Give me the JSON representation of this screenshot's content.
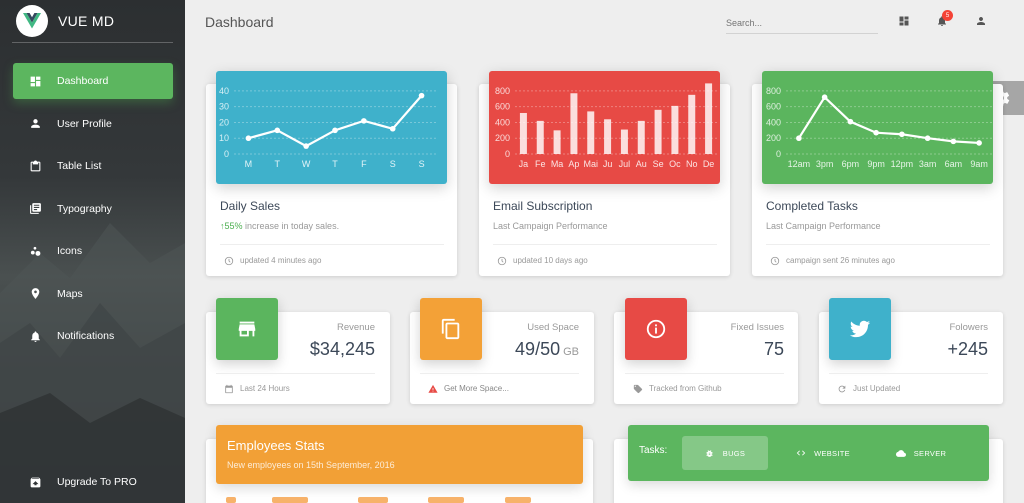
{
  "brand": {
    "name": "VUE MD"
  },
  "sidebar": {
    "items": [
      {
        "label": "Dashboard",
        "icon": "dashboard-icon",
        "active": true
      },
      {
        "label": "User Profile",
        "icon": "person-icon"
      },
      {
        "label": "Table List",
        "icon": "clipboard-icon"
      },
      {
        "label": "Typography",
        "icon": "library-books-icon"
      },
      {
        "label": "Icons",
        "icon": "bubble-chart-icon"
      },
      {
        "label": "Maps",
        "icon": "location-pin-icon"
      },
      {
        "label": "Notifications",
        "icon": "bell-icon"
      }
    ],
    "upgrade_label": "Upgrade To PRO"
  },
  "header": {
    "title": "Dashboard",
    "search_placeholder": "Search...",
    "notification_count": "5"
  },
  "charts": [
    {
      "title": "Daily Sales",
      "category_percent": "55%",
      "category_text": " increase in today sales.",
      "footer": "updated 4 minutes ago",
      "color": "#3fb1cb"
    },
    {
      "title": "Email Subscription",
      "category_text": "Last Campaign Performance",
      "footer": "updated 10 days ago",
      "color": "#e74a45"
    },
    {
      "title": "Completed Tasks",
      "category_text": "Last Campaign Performance",
      "footer": "campaign sent 26 minutes ago",
      "color": "#5bb55e"
    }
  ],
  "chart_data": [
    {
      "type": "line",
      "categories": [
        "M",
        "T",
        "W",
        "T",
        "F",
        "S",
        "S"
      ],
      "values": [
        10,
        15,
        5,
        15,
        21,
        16,
        37
      ],
      "yticks": [
        "40",
        "30",
        "20",
        "10",
        "0"
      ],
      "ylim": [
        0,
        45
      ],
      "grid": true
    },
    {
      "type": "bar",
      "categories": [
        "Ja",
        "Fe",
        "Ma",
        "Ap",
        "Mai",
        "Ju",
        "Jul",
        "Au",
        "Se",
        "Oc",
        "No",
        "De"
      ],
      "values": [
        520,
        420,
        300,
        770,
        540,
        440,
        310,
        420,
        560,
        610,
        750,
        895
      ],
      "yticks": [
        "800",
        "600",
        "400",
        "200",
        "0"
      ],
      "ylim": [
        0,
        900
      ],
      "grid": true
    },
    {
      "type": "line",
      "categories": [
        "12am",
        "3pm",
        "6pm",
        "9pm",
        "12pm",
        "3am",
        "6am",
        "9am"
      ],
      "values": [
        200,
        720,
        410,
        270,
        250,
        200,
        160,
        140
      ],
      "yticks": [
        "800",
        "600",
        "400",
        "200",
        "0"
      ],
      "ylim": [
        0,
        900
      ],
      "grid": true
    }
  ],
  "stats": [
    {
      "label": "Revenue",
      "value": "$34,245",
      "unit": "",
      "footer": "Last 24 Hours",
      "color": "#5bb55e",
      "icon": "store-icon",
      "footer_icon": "calendar-icon"
    },
    {
      "label": "Used Space",
      "value": "49/50",
      "unit": "GB",
      "footer": "Get More Space...",
      "color": "#f3a137",
      "icon": "copy-icon",
      "footer_icon": "warning-icon"
    },
    {
      "label": "Fixed Issues",
      "value": "75",
      "unit": "",
      "footer": "Tracked from Github",
      "color": "#e74a45",
      "icon": "info-icon",
      "footer_icon": "tag-icon"
    },
    {
      "label": "Folowers",
      "value": "+245",
      "unit": "",
      "footer": "Just Updated",
      "color": "#3fb1cb",
      "icon": "twitter-icon",
      "footer_icon": "refresh-icon"
    }
  ],
  "employees": {
    "title": "Employees Stats",
    "subtitle": "New employees on 15th September, 2016"
  },
  "tasks": {
    "label": "Tasks:",
    "tabs": [
      {
        "label": "BUGS",
        "icon": "bug-icon",
        "active": true
      },
      {
        "label": "WEBSITE",
        "icon": "code-icon"
      },
      {
        "label": "SERVER",
        "icon": "cloud-icon"
      }
    ]
  }
}
